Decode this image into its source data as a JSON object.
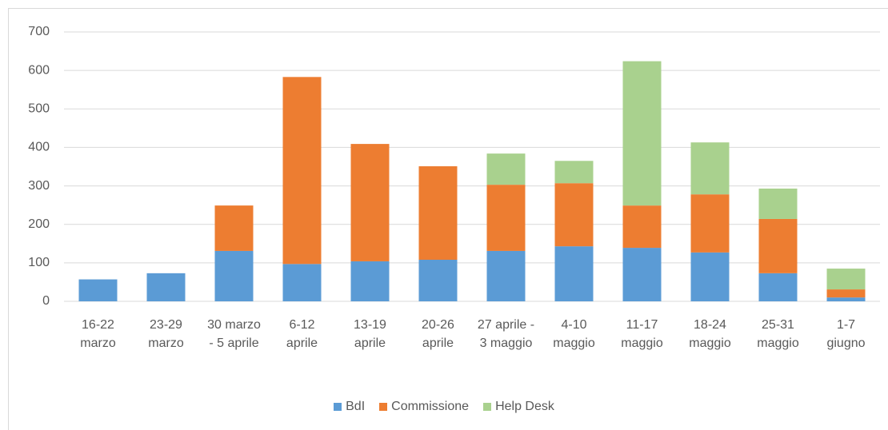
{
  "chart_data": {
    "type": "bar",
    "stacked": true,
    "categories": [
      "16-22 marzo",
      "23-29 marzo",
      "30 marzo - 5 aprile",
      "6-12 aprile",
      "13-19 aprile",
      "20-26 aprile",
      "27 aprile - 3 maggio",
      "4-10 maggio",
      "11-17 maggio",
      "18-24 maggio",
      "25-31 maggio",
      "1-7 giugno"
    ],
    "series": [
      {
        "name": "BdI",
        "color": "#5b9bd5",
        "values": [
          57,
          73,
          131,
          97,
          104,
          108,
          131,
          143,
          139,
          127,
          73,
          10
        ]
      },
      {
        "name": "Commissione",
        "color": "#ed7d31",
        "values": [
          0,
          0,
          118,
          486,
          305,
          243,
          172,
          164,
          110,
          151,
          141,
          21
        ]
      },
      {
        "name": "Help Desk",
        "color": "#a9d18e",
        "values": [
          0,
          0,
          0,
          0,
          0,
          0,
          81,
          58,
          375,
          135,
          79,
          54
        ]
      }
    ],
    "ylim": [
      0,
      700
    ],
    "yticks": [
      0,
      100,
      200,
      300,
      400,
      500,
      600,
      700
    ],
    "grid": true,
    "legend": "bottom"
  }
}
